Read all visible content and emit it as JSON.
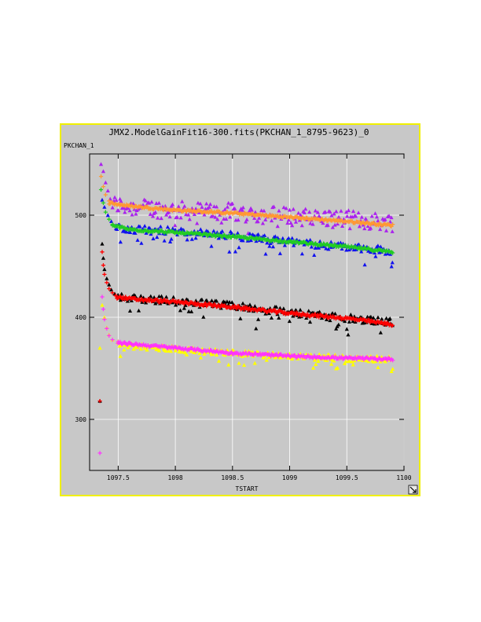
{
  "window": {
    "title": "JMX2.ModelGainFit16-300.fits(PKCHAN_1_8795-9623)_0",
    "resize_icon": "resize-arrow-icon"
  },
  "colors": {
    "background": "#c8c8c8",
    "border": "#f0f000",
    "black": "#000000",
    "red": "#ff0000",
    "yellow": "#ffff00",
    "magenta": "#ff33ff",
    "purple": "#aa22ee",
    "orange": "#ff9933",
    "blue": "#1111ee",
    "green": "#22cc22"
  },
  "chart_data": {
    "type": "scatter",
    "title": "JMX2.ModelGainFit16-300.fits(PKCHAN_1_8795-9623)_0",
    "xlabel": "TSTART",
    "ylabel": "PKCHAN_1",
    "xlim": [
      1097.25,
      1100.0
    ],
    "ylim": [
      250,
      560
    ],
    "x_ticks": [
      1097.5,
      1098,
      1098.5,
      1099,
      1099.5,
      1100
    ],
    "x_tick_labels": [
      "1097.5",
      "1098",
      "1098.5",
      "1099",
      "1099.5",
      "1100"
    ],
    "y_ticks": [
      300,
      400,
      500
    ],
    "y_tick_labels": [
      "300",
      "400",
      "500"
    ],
    "grid": true,
    "legend": "none",
    "x_range": [
      1097.35,
      1099.9
    ],
    "series": [
      {
        "marker": "triangle",
        "color": "#aa22ee",
        "points": [
          [
            1097.35,
            550
          ],
          [
            1097.37,
            543
          ],
          [
            1097.39,
            532
          ],
          [
            1097.41,
            524
          ],
          [
            1097.43,
            516
          ],
          [
            1097.46,
            512
          ]
        ],
        "trend": [
          [
            1097.45,
            511
          ],
          [
            1097.6,
            508
          ],
          [
            1098.0,
            505
          ],
          [
            1098.5,
            503
          ],
          [
            1099.0,
            499
          ],
          [
            1099.5,
            496
          ],
          [
            1099.9,
            493
          ]
        ],
        "scatter": 9,
        "dips": 0.06,
        "dip_depth": 20
      },
      {
        "marker": "plus",
        "color": "#ff9933",
        "points": [
          [
            1097.35,
            538
          ],
          [
            1097.37,
            528
          ],
          [
            1097.39,
            520
          ],
          [
            1097.42,
            514
          ]
        ],
        "trend": [
          [
            1097.42,
            512
          ],
          [
            1097.6,
            509
          ],
          [
            1098.0,
            505
          ],
          [
            1098.5,
            502
          ],
          [
            1099.0,
            498
          ],
          [
            1099.5,
            494
          ],
          [
            1099.9,
            490
          ]
        ],
        "scatter": 1.2,
        "dips": 0,
        "dip_depth": 0
      },
      {
        "marker": "triangle",
        "color": "#1111ee",
        "points": [
          [
            1097.36,
            515
          ],
          [
            1097.38,
            508
          ],
          [
            1097.41,
            500
          ],
          [
            1097.44,
            494
          ],
          [
            1097.48,
            490
          ]
        ],
        "trend": [
          [
            1097.48,
            489
          ],
          [
            1097.6,
            487
          ],
          [
            1098.0,
            484
          ],
          [
            1098.5,
            480
          ],
          [
            1099.0,
            474
          ],
          [
            1099.5,
            469
          ],
          [
            1099.9,
            465
          ]
        ],
        "scatter": 4,
        "dips": 0.14,
        "dip_depth": 14
      },
      {
        "marker": "plus",
        "color": "#22cc22",
        "points": [
          [
            1097.35,
            525
          ],
          [
            1097.37,
            512
          ],
          [
            1097.39,
            503
          ],
          [
            1097.42,
            496
          ],
          [
            1097.45,
            491
          ]
        ],
        "trend": [
          [
            1097.45,
            490
          ],
          [
            1097.6,
            486
          ],
          [
            1098.0,
            483
          ],
          [
            1098.5,
            479
          ],
          [
            1099.0,
            474
          ],
          [
            1099.5,
            469
          ],
          [
            1099.9,
            464
          ]
        ],
        "scatter": 1.2,
        "dips": 0,
        "dip_depth": 0
      },
      {
        "marker": "triangle",
        "color": "#000000",
        "points": [
          [
            1097.34,
            318
          ],
          [
            1097.36,
            472
          ],
          [
            1097.37,
            458
          ],
          [
            1097.38,
            447
          ],
          [
            1097.4,
            438
          ],
          [
            1097.42,
            432
          ],
          [
            1097.44,
            427
          ],
          [
            1097.47,
            423
          ],
          [
            1097.5,
            421
          ]
        ],
        "trend": [
          [
            1097.5,
            420
          ],
          [
            1097.6,
            419
          ],
          [
            1098.0,
            416
          ],
          [
            1098.5,
            411
          ],
          [
            1099.0,
            405
          ],
          [
            1099.5,
            399
          ],
          [
            1099.9,
            395
          ]
        ],
        "scatter": 4,
        "dips": 0.1,
        "dip_depth": 16
      },
      {
        "marker": "plus",
        "color": "#ff0000",
        "points": [
          [
            1097.34,
            318
          ],
          [
            1097.36,
            464
          ],
          [
            1097.37,
            451
          ],
          [
            1097.38,
            442
          ],
          [
            1097.4,
            434
          ],
          [
            1097.42,
            428
          ],
          [
            1097.45,
            424
          ],
          [
            1097.48,
            421
          ]
        ],
        "trend": [
          [
            1097.48,
            420
          ],
          [
            1097.6,
            418
          ],
          [
            1098.0,
            415
          ],
          [
            1098.5,
            410
          ],
          [
            1099.0,
            404
          ],
          [
            1099.5,
            399
          ],
          [
            1099.9,
            393
          ]
        ],
        "scatter": 1.5,
        "dips": 0,
        "dip_depth": 0
      },
      {
        "marker": "triangle",
        "color": "#ffff00",
        "points": [
          [
            1097.34,
            370
          ],
          [
            1097.36,
            412
          ],
          [
            1097.38,
            400
          ],
          [
            1097.4,
            390
          ],
          [
            1097.42,
            383
          ],
          [
            1097.45,
            378
          ],
          [
            1097.5,
            375
          ]
        ],
        "trend": [
          [
            1097.5,
            374
          ],
          [
            1097.6,
            372
          ],
          [
            1098.0,
            369
          ],
          [
            1098.5,
            365
          ],
          [
            1099.0,
            362
          ],
          [
            1099.5,
            360
          ],
          [
            1099.9,
            359
          ]
        ],
        "scatter": 3,
        "dips": 0.12,
        "dip_depth": 14
      },
      {
        "marker": "plus",
        "color": "#ff33ff",
        "points": [
          [
            1097.34,
            267
          ],
          [
            1097.36,
            420
          ],
          [
            1097.37,
            408
          ],
          [
            1097.38,
            398
          ],
          [
            1097.4,
            389
          ],
          [
            1097.42,
            382
          ],
          [
            1097.45,
            378
          ],
          [
            1097.5,
            376
          ]
        ],
        "trend": [
          [
            1097.5,
            375
          ],
          [
            1097.6,
            374
          ],
          [
            1098.0,
            370
          ],
          [
            1098.5,
            365
          ],
          [
            1099.0,
            362
          ],
          [
            1099.5,
            360
          ],
          [
            1099.9,
            359
          ]
        ],
        "scatter": 1.2,
        "dips": 0,
        "dip_depth": 0
      }
    ]
  }
}
